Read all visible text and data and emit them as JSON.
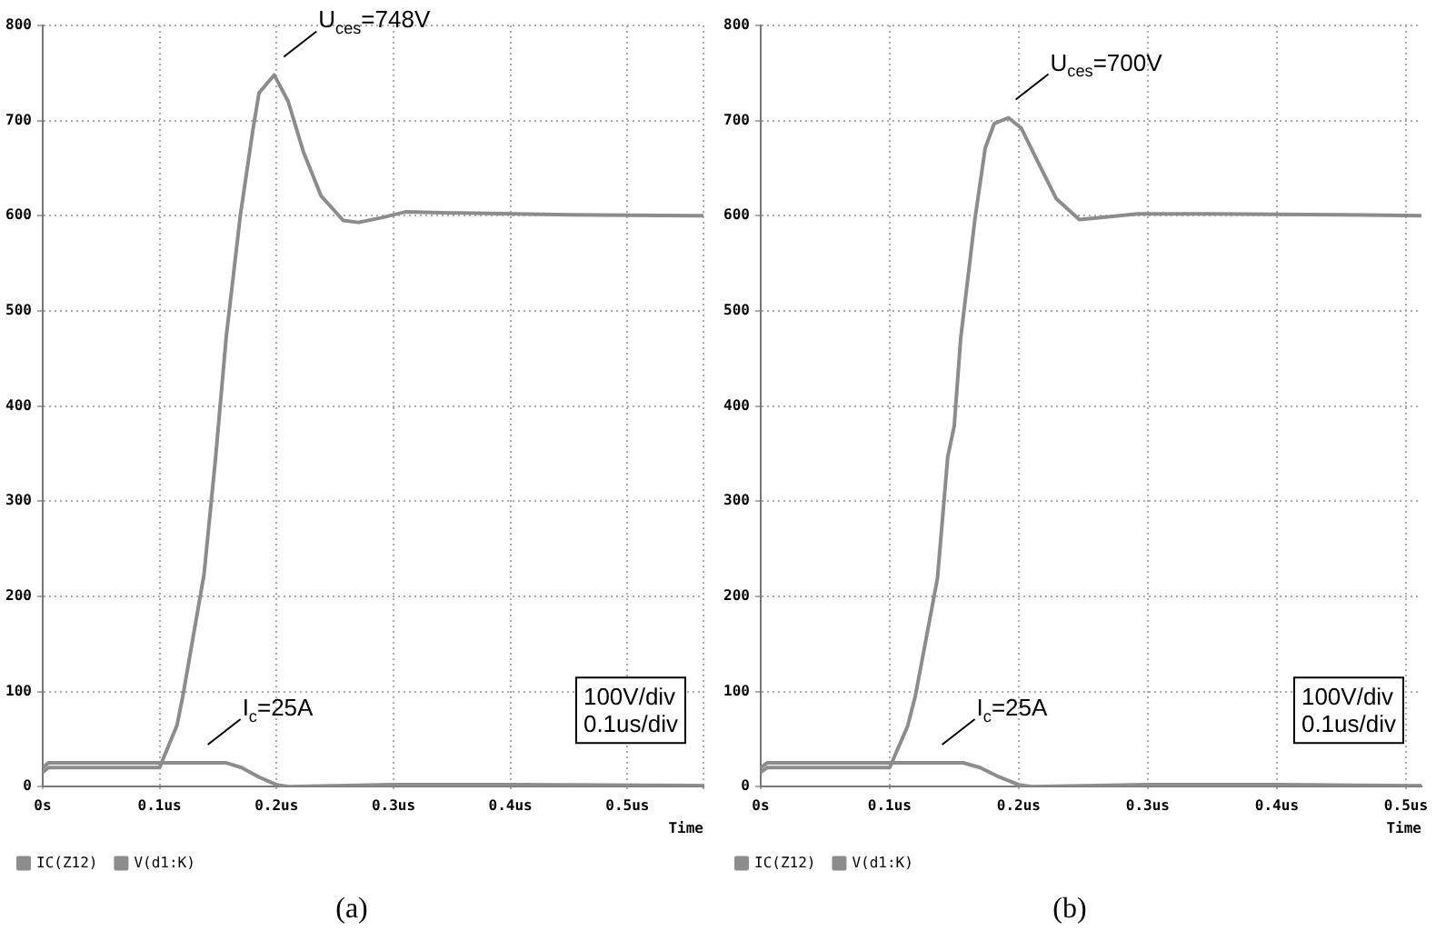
{
  "chart_data": [
    {
      "type": "line",
      "title": "(a)",
      "xlabel": "Time",
      "legend": "bottom left",
      "grid": true,
      "line_style": "solid",
      "xlim": [
        0,
        0.565
      ],
      "ylim": [
        0,
        800
      ],
      "xticks": [
        {
          "value": 0,
          "label": "0s"
        },
        {
          "value": 0.1,
          "label": "0.1us"
        },
        {
          "value": 0.2,
          "label": "0.2us"
        },
        {
          "value": 0.3,
          "label": "0.3us"
        },
        {
          "value": 0.4,
          "label": "0.4us"
        },
        {
          "value": 0.5,
          "label": "0.5us"
        },
        {
          "value": 0.565,
          "label": null
        }
      ],
      "yticks": [
        0,
        100,
        200,
        300,
        400,
        500,
        600,
        700,
        800
      ],
      "series": [
        {
          "name": "IC(Z12)",
          "color": "#8c8c8c",
          "x": [
            0,
            0.005,
            0.1,
            0.157,
            0.17,
            0.185,
            0.2,
            0.21,
            0.3,
            0.4,
            0.565
          ],
          "values": [
            20,
            25,
            25,
            25,
            20,
            10,
            2,
            0,
            2,
            2,
            1
          ]
        },
        {
          "name": "V(d1:K)",
          "color": "#8c8c8c",
          "x": [
            0,
            0.005,
            0.1,
            0.115,
            0.12,
            0.138,
            0.148,
            0.157,
            0.169,
            0.18,
            0.185,
            0.198,
            0.21,
            0.223,
            0.238,
            0.257,
            0.27,
            0.29,
            0.31,
            0.35,
            0.45,
            0.565
          ],
          "values": [
            15,
            20,
            20,
            65,
            96,
            223,
            347,
            473,
            600,
            692,
            729,
            748,
            720,
            667,
            621,
            595,
            593,
            598,
            604,
            603,
            601,
            600
          ]
        }
      ],
      "annotations": [
        {
          "text": "U$_{ces}$=748V",
          "x": 0.2,
          "y": 748
        },
        {
          "text": "I$_{c}$=25A",
          "x": 0.135,
          "y": 25
        },
        "100V/div\n0.1us/div"
      ]
    },
    {
      "type": "line",
      "title": "(b)",
      "xlabel": "Time",
      "legend": "bottom left",
      "grid": true,
      "line_style": "solid",
      "xlim": [
        0,
        0.512
      ],
      "ylim": [
        0,
        800
      ],
      "xticks": [
        {
          "value": 0,
          "label": "0s"
        },
        {
          "value": 0.1,
          "label": "0.1us"
        },
        {
          "value": 0.2,
          "label": "0.2us"
        },
        {
          "value": 0.3,
          "label": "0.3us"
        },
        {
          "value": 0.4,
          "label": "0.4us"
        },
        {
          "value": 0.5,
          "label": "0.5us"
        }
      ],
      "yticks": [
        0,
        100,
        200,
        300,
        400,
        500,
        600,
        700,
        800
      ],
      "series": [
        {
          "name": "IC(Z12)",
          "color": "#8c8c8c",
          "x": [
            0,
            0.005,
            0.1,
            0.157,
            0.17,
            0.185,
            0.2,
            0.21,
            0.3,
            0.4,
            0.512
          ],
          "values": [
            20,
            25,
            25,
            25,
            20,
            10,
            2,
            0,
            2,
            2,
            1
          ]
        },
        {
          "name": "V(d1:K)",
          "color": "#8c8c8c",
          "x": [
            0,
            0.005,
            0.1,
            0.114,
            0.12,
            0.137,
            0.145,
            0.15,
            0.155,
            0.166,
            0.174,
            0.181,
            0.192,
            0.202,
            0.215,
            0.229,
            0.247,
            0.262,
            0.292,
            0.35,
            0.45,
            0.512
          ],
          "values": [
            15,
            20,
            20,
            64,
            96,
            219,
            347,
            379,
            471,
            596,
            671,
            697,
            703,
            692,
            656,
            618,
            596,
            598,
            602,
            602,
            601,
            600
          ]
        }
      ],
      "annotations": [
        {
          "text": "U$_{ces}$=700V",
          "x": 0.192,
          "y": 703
        },
        {
          "text": "I$_{c}$=25A",
          "x": 0.135,
          "y": 25
        },
        "100V/div\n0.1us/div"
      ]
    }
  ]
}
